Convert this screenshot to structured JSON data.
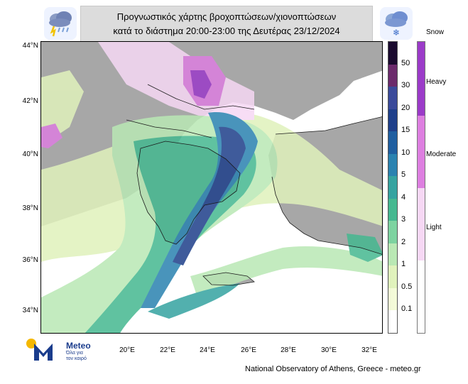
{
  "header": {
    "title_line1": "Προγνωστικός χάρτης βροχοπτώσεων/χιονοπτώσεων",
    "title_line2": "κατά το διάστημα 20:00-23:00 της Δευτέρας 23/12/2024"
  },
  "icons": {
    "left": "rain-cloud-icon",
    "right": "snow-cloud-icon"
  },
  "map": {
    "lat_labels": [
      "44°N",
      "42°N",
      "40°N",
      "38°N",
      "36°N",
      "34°N"
    ],
    "lon_labels": [
      "20°E",
      "22°E",
      "24°E",
      "26°E",
      "28°E",
      "30°E",
      "32°E"
    ]
  },
  "rain_scale": {
    "labels": [
      "50",
      "30",
      "20",
      "15",
      "10",
      "5",
      "4",
      "3",
      "2",
      "1",
      "0.5",
      "0.1"
    ],
    "colors": [
      "#1a0a2e",
      "#6b2a6b",
      "#3a4a9a",
      "#1e3f8a",
      "#1f5ea0",
      "#2a82b0",
      "#35a3a0",
      "#45b890",
      "#7dd3a0",
      "#b9e8b4",
      "#e0f2bc",
      "#f3fad8",
      "#ffffff"
    ]
  },
  "snow_scale": {
    "title": "Snow",
    "labels": [
      "Heavy",
      "Moderate",
      "Light"
    ],
    "colors": [
      "#9b3bc8",
      "#dd7fe0",
      "#f6d8f4",
      "#ffffff"
    ]
  },
  "logo": {
    "brand": "Meteo",
    "tagline_line1": "Όλα για",
    "tagline_line2": "τον καιρό"
  },
  "footer": {
    "credit": "National Observatory of Athens, Greece - meteo.gr"
  }
}
